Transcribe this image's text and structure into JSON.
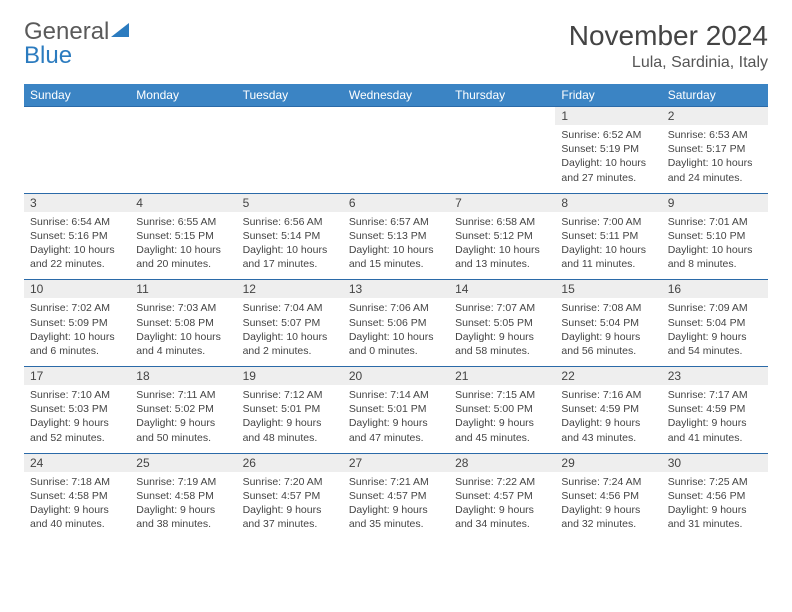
{
  "brand": {
    "name_a": "General",
    "name_b": "Blue"
  },
  "title": "November 2024",
  "location": "Lula, Sardinia, Italy",
  "colors": {
    "header_bg": "#3b84c4",
    "header_text": "#ffffff",
    "row_border": "#2b6aa8",
    "daynum_bg": "#eeeeee",
    "brand_gray": "#5a5a5a",
    "brand_blue": "#2b7bbf"
  },
  "header_fontsize": 28,
  "location_fontsize": 16,
  "weekday_fontsize": 12,
  "cell_fontsize": 10.5,
  "weekdays": [
    "Sunday",
    "Monday",
    "Tuesday",
    "Wednesday",
    "Thursday",
    "Friday",
    "Saturday"
  ],
  "weeks": [
    [
      {
        "n": "",
        "sr": "",
        "ss": "",
        "dl": ""
      },
      {
        "n": "",
        "sr": "",
        "ss": "",
        "dl": ""
      },
      {
        "n": "",
        "sr": "",
        "ss": "",
        "dl": ""
      },
      {
        "n": "",
        "sr": "",
        "ss": "",
        "dl": ""
      },
      {
        "n": "",
        "sr": "",
        "ss": "",
        "dl": ""
      },
      {
        "n": "1",
        "sr": "Sunrise: 6:52 AM",
        "ss": "Sunset: 5:19 PM",
        "dl": "Daylight: 10 hours and 27 minutes."
      },
      {
        "n": "2",
        "sr": "Sunrise: 6:53 AM",
        "ss": "Sunset: 5:17 PM",
        "dl": "Daylight: 10 hours and 24 minutes."
      }
    ],
    [
      {
        "n": "3",
        "sr": "Sunrise: 6:54 AM",
        "ss": "Sunset: 5:16 PM",
        "dl": "Daylight: 10 hours and 22 minutes."
      },
      {
        "n": "4",
        "sr": "Sunrise: 6:55 AM",
        "ss": "Sunset: 5:15 PM",
        "dl": "Daylight: 10 hours and 20 minutes."
      },
      {
        "n": "5",
        "sr": "Sunrise: 6:56 AM",
        "ss": "Sunset: 5:14 PM",
        "dl": "Daylight: 10 hours and 17 minutes."
      },
      {
        "n": "6",
        "sr": "Sunrise: 6:57 AM",
        "ss": "Sunset: 5:13 PM",
        "dl": "Daylight: 10 hours and 15 minutes."
      },
      {
        "n": "7",
        "sr": "Sunrise: 6:58 AM",
        "ss": "Sunset: 5:12 PM",
        "dl": "Daylight: 10 hours and 13 minutes."
      },
      {
        "n": "8",
        "sr": "Sunrise: 7:00 AM",
        "ss": "Sunset: 5:11 PM",
        "dl": "Daylight: 10 hours and 11 minutes."
      },
      {
        "n": "9",
        "sr": "Sunrise: 7:01 AM",
        "ss": "Sunset: 5:10 PM",
        "dl": "Daylight: 10 hours and 8 minutes."
      }
    ],
    [
      {
        "n": "10",
        "sr": "Sunrise: 7:02 AM",
        "ss": "Sunset: 5:09 PM",
        "dl": "Daylight: 10 hours and 6 minutes."
      },
      {
        "n": "11",
        "sr": "Sunrise: 7:03 AM",
        "ss": "Sunset: 5:08 PM",
        "dl": "Daylight: 10 hours and 4 minutes."
      },
      {
        "n": "12",
        "sr": "Sunrise: 7:04 AM",
        "ss": "Sunset: 5:07 PM",
        "dl": "Daylight: 10 hours and 2 minutes."
      },
      {
        "n": "13",
        "sr": "Sunrise: 7:06 AM",
        "ss": "Sunset: 5:06 PM",
        "dl": "Daylight: 10 hours and 0 minutes."
      },
      {
        "n": "14",
        "sr": "Sunrise: 7:07 AM",
        "ss": "Sunset: 5:05 PM",
        "dl": "Daylight: 9 hours and 58 minutes."
      },
      {
        "n": "15",
        "sr": "Sunrise: 7:08 AM",
        "ss": "Sunset: 5:04 PM",
        "dl": "Daylight: 9 hours and 56 minutes."
      },
      {
        "n": "16",
        "sr": "Sunrise: 7:09 AM",
        "ss": "Sunset: 5:04 PM",
        "dl": "Daylight: 9 hours and 54 minutes."
      }
    ],
    [
      {
        "n": "17",
        "sr": "Sunrise: 7:10 AM",
        "ss": "Sunset: 5:03 PM",
        "dl": "Daylight: 9 hours and 52 minutes."
      },
      {
        "n": "18",
        "sr": "Sunrise: 7:11 AM",
        "ss": "Sunset: 5:02 PM",
        "dl": "Daylight: 9 hours and 50 minutes."
      },
      {
        "n": "19",
        "sr": "Sunrise: 7:12 AM",
        "ss": "Sunset: 5:01 PM",
        "dl": "Daylight: 9 hours and 48 minutes."
      },
      {
        "n": "20",
        "sr": "Sunrise: 7:14 AM",
        "ss": "Sunset: 5:01 PM",
        "dl": "Daylight: 9 hours and 47 minutes."
      },
      {
        "n": "21",
        "sr": "Sunrise: 7:15 AM",
        "ss": "Sunset: 5:00 PM",
        "dl": "Daylight: 9 hours and 45 minutes."
      },
      {
        "n": "22",
        "sr": "Sunrise: 7:16 AM",
        "ss": "Sunset: 4:59 PM",
        "dl": "Daylight: 9 hours and 43 minutes."
      },
      {
        "n": "23",
        "sr": "Sunrise: 7:17 AM",
        "ss": "Sunset: 4:59 PM",
        "dl": "Daylight: 9 hours and 41 minutes."
      }
    ],
    [
      {
        "n": "24",
        "sr": "Sunrise: 7:18 AM",
        "ss": "Sunset: 4:58 PM",
        "dl": "Daylight: 9 hours and 40 minutes."
      },
      {
        "n": "25",
        "sr": "Sunrise: 7:19 AM",
        "ss": "Sunset: 4:58 PM",
        "dl": "Daylight: 9 hours and 38 minutes."
      },
      {
        "n": "26",
        "sr": "Sunrise: 7:20 AM",
        "ss": "Sunset: 4:57 PM",
        "dl": "Daylight: 9 hours and 37 minutes."
      },
      {
        "n": "27",
        "sr": "Sunrise: 7:21 AM",
        "ss": "Sunset: 4:57 PM",
        "dl": "Daylight: 9 hours and 35 minutes."
      },
      {
        "n": "28",
        "sr": "Sunrise: 7:22 AM",
        "ss": "Sunset: 4:57 PM",
        "dl": "Daylight: 9 hours and 34 minutes."
      },
      {
        "n": "29",
        "sr": "Sunrise: 7:24 AM",
        "ss": "Sunset: 4:56 PM",
        "dl": "Daylight: 9 hours and 32 minutes."
      },
      {
        "n": "30",
        "sr": "Sunrise: 7:25 AM",
        "ss": "Sunset: 4:56 PM",
        "dl": "Daylight: 9 hours and 31 minutes."
      }
    ]
  ]
}
